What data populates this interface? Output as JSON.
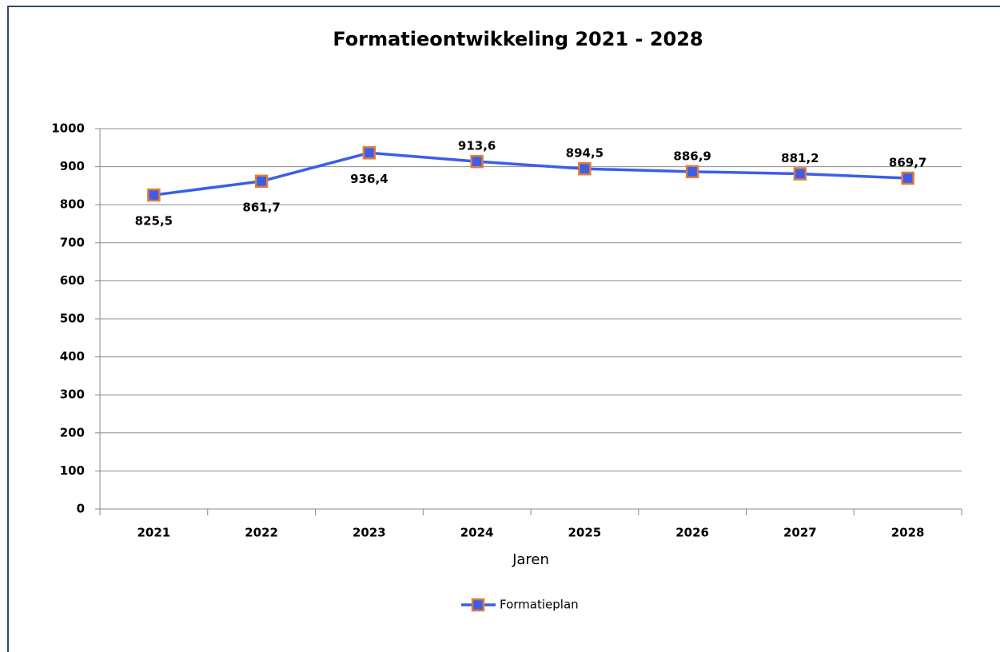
{
  "chart_data": {
    "type": "line",
    "title": "Formatieontwikkeling 2021 - 2028",
    "x_label": "Jaren",
    "categories": [
      "2021",
      "2022",
      "2023",
      "2024",
      "2025",
      "2026",
      "2027",
      "2028"
    ],
    "series": [
      {
        "name": "Formatieplan",
        "color": "#3b5ee8",
        "marker_edge_color": "#e07b39",
        "values": [
          825.5,
          861.7,
          936.4,
          913.6,
          894.5,
          886.9,
          881.2,
          869.7
        ],
        "value_labels": [
          "825,5",
          "861,7",
          "936,4",
          "913,6",
          "894,5",
          "886,9",
          "881,2",
          "869,7"
        ]
      }
    ],
    "ylim": [
      0,
      1000
    ],
    "yticks": [
      0,
      100,
      200,
      300,
      400,
      500,
      600,
      700,
      800,
      900,
      1000
    ],
    "grid": true,
    "legend": "bottom"
  }
}
